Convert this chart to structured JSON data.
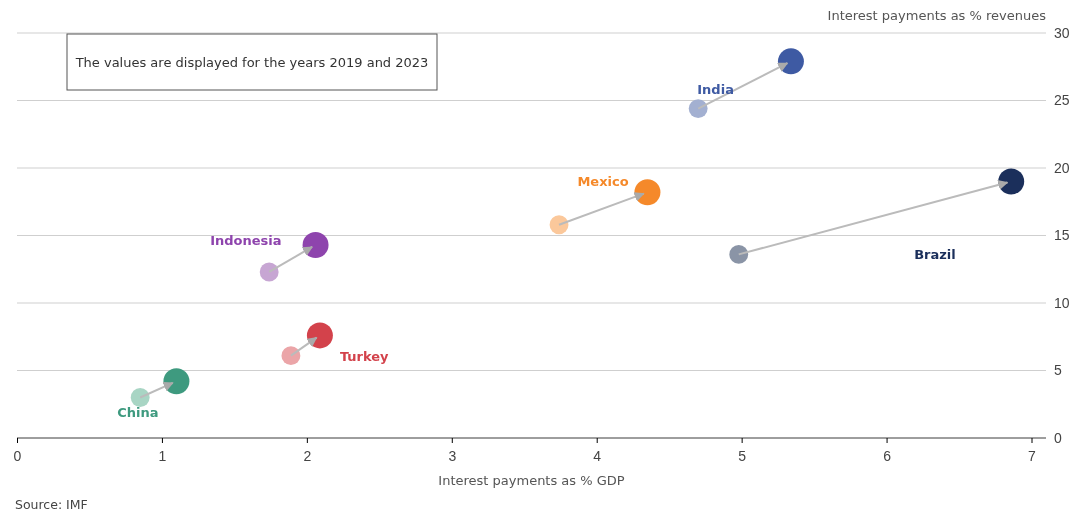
{
  "chart_data": {
    "type": "scatter",
    "xlabel": "Interest payments as % GDP",
    "ylabel": "Interest payments as % revenues",
    "xlim": [
      0,
      7.1
    ],
    "xticks": [
      0,
      1,
      2,
      3,
      4,
      5,
      6,
      7
    ],
    "ylim": [
      0,
      30
    ],
    "yticks": [
      0,
      5,
      10,
      15,
      20,
      25,
      30
    ],
    "grid": "y",
    "marker": "circle",
    "legend": false,
    "annotations": [
      "The values are displayed for the years 2019 and 2023",
      "Source: IMF"
    ],
    "series": [
      {
        "name": "China",
        "color": "#3e9a7f",
        "colors": [
          "#a8d5c4",
          "#3e9a7f"
        ],
        "x": [
          0.85,
          1.1
        ],
        "values": [
          3.0,
          4.2
        ]
      },
      {
        "name": "Turkey",
        "color": "#d3424b",
        "colors": [
          "#eba5a8",
          "#d3424b"
        ],
        "x": [
          1.89,
          2.09
        ],
        "values": [
          6.1,
          7.6
        ]
      },
      {
        "name": "Indonesia",
        "color": "#8e44ad",
        "colors": [
          "#c7a6d3",
          "#8e44ad"
        ],
        "x": [
          1.74,
          2.06
        ],
        "values": [
          12.3,
          14.3
        ]
      },
      {
        "name": "Mexico",
        "color": "#f5892a",
        "colors": [
          "#fbc89b",
          "#f5892a"
        ],
        "x": [
          3.74,
          4.35
        ],
        "values": [
          15.8,
          18.2
        ]
      },
      {
        "name": "India",
        "color": "#3e5aa3",
        "colors": [
          "#a3b0d1",
          "#3e5aa3"
        ],
        "x": [
          4.7,
          5.34
        ],
        "values": [
          24.4,
          27.9
        ]
      },
      {
        "name": "Brazil",
        "color": "#1b2f5b",
        "colors": [
          "#8a94a6",
          "#1b2f5b"
        ],
        "x": [
          4.98,
          6.86
        ],
        "values": [
          13.6,
          19.0
        ]
      }
    ]
  }
}
